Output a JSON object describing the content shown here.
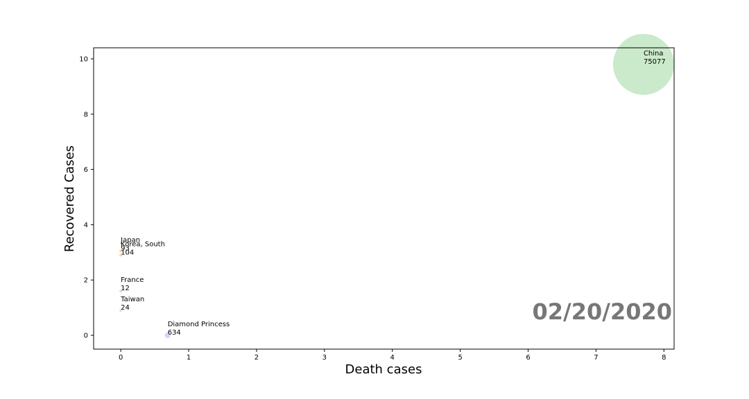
{
  "chart_data": {
    "type": "scatter",
    "xlabel": "Death cases",
    "ylabel": "Recovered Cases",
    "xlim": [
      -0.4,
      8.15
    ],
    "ylim": [
      -0.5,
      10.4
    ],
    "xticks": [
      0,
      1,
      2,
      3,
      4,
      5,
      6,
      7,
      8
    ],
    "yticks": [
      0,
      2,
      4,
      6,
      8,
      10
    ],
    "grid": false,
    "annotation": "02/20/2020",
    "points": [
      {
        "name": "China",
        "value": "75077",
        "x": 7.7,
        "y": 9.8,
        "color": "#a8dba8"
      },
      {
        "name": "Japan",
        "value": "93",
        "x": 0.0,
        "y": 3.05,
        "color": "#f2c14e"
      },
      {
        "name": "Korea, South",
        "value": "104",
        "x": 0.0,
        "y": 2.9,
        "color": "#f2c14e"
      },
      {
        "name": "France",
        "value": "12",
        "x": 0.0,
        "y": 1.6,
        "color": "#d9b8e8"
      },
      {
        "name": "Taiwan",
        "value": "24",
        "x": 0.0,
        "y": 0.9,
        "color": "#f2b8b8"
      },
      {
        "name": "Diamond Princess",
        "value": "634",
        "x": 0.69,
        "y": 0.0,
        "color": "#b8b8f2"
      }
    ]
  }
}
